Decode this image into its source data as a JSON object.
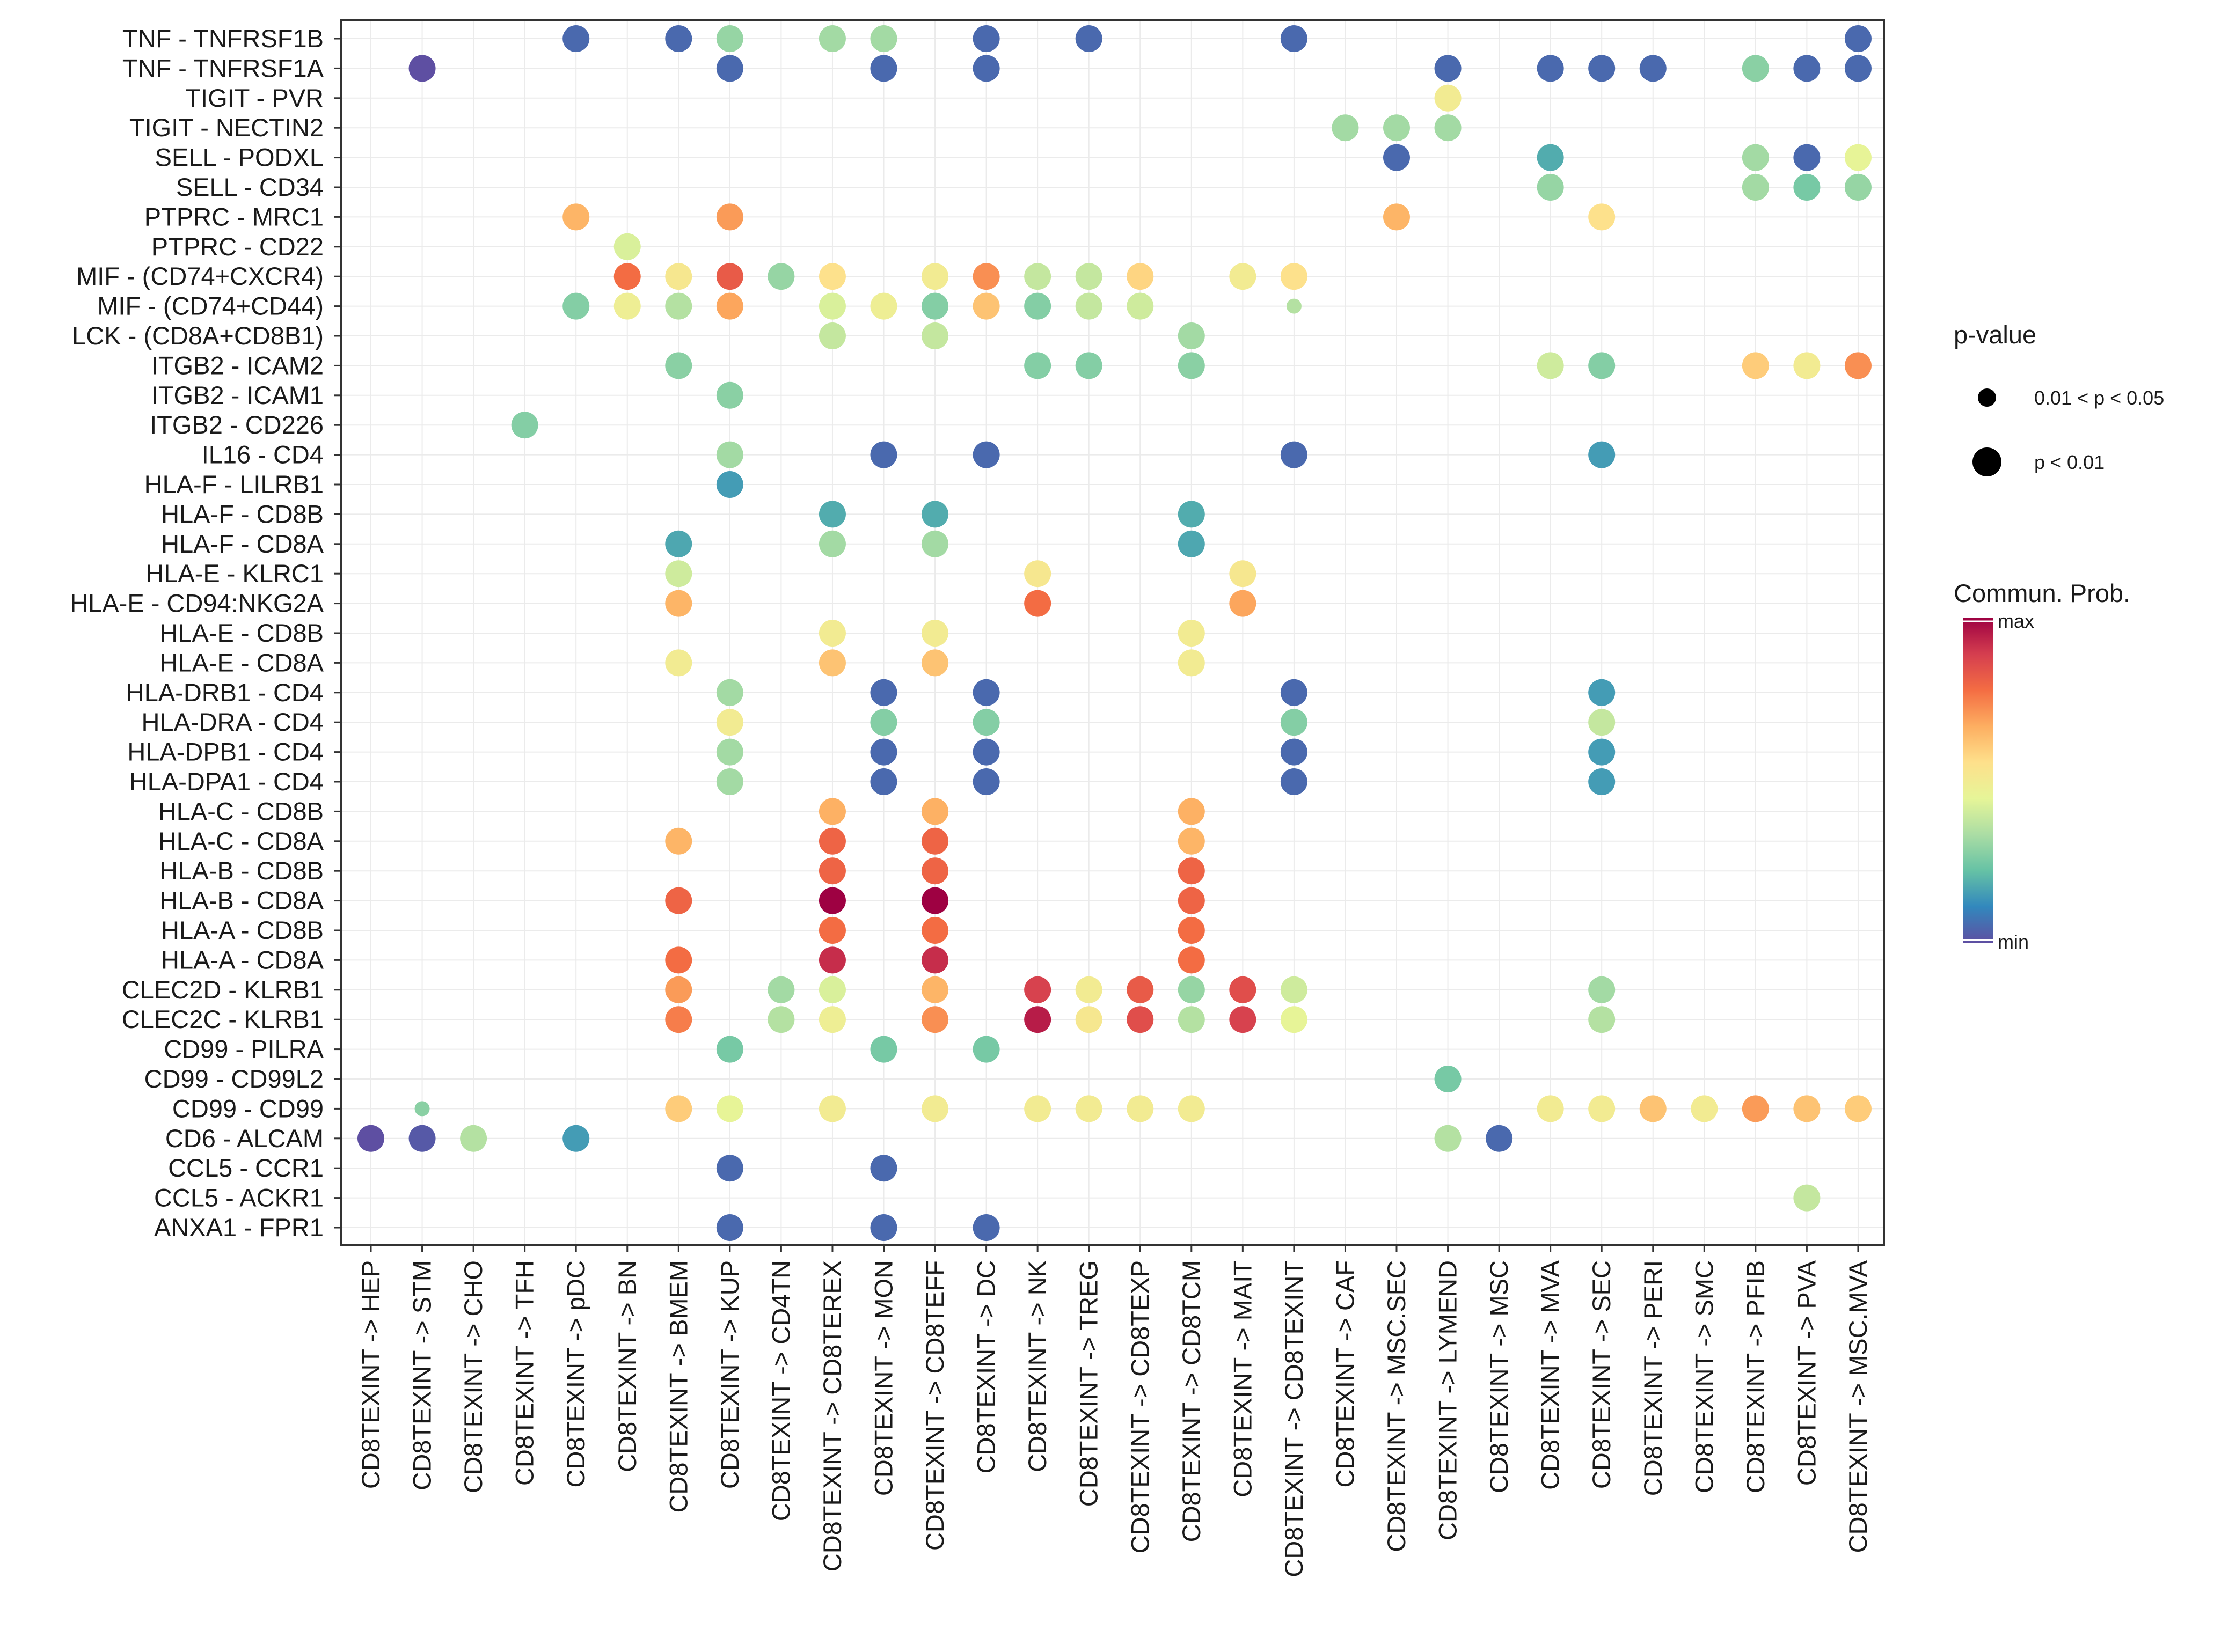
{
  "chart_data": {
    "type": "dotplot",
    "title": "",
    "xlabel": "",
    "ylabel": "",
    "x_categories": [
      "CD8TEXINT -> HEP",
      "CD8TEXINT -> STM",
      "CD8TEXINT -> CHO",
      "CD8TEXINT -> TFH",
      "CD8TEXINT -> pDC",
      "CD8TEXINT -> BN",
      "CD8TEXINT -> BMEM",
      "CD8TEXINT -> KUP",
      "CD8TEXINT -> CD4TN",
      "CD8TEXINT -> CD8TEREX",
      "CD8TEXINT -> MON",
      "CD8TEXINT -> CD8TEFF",
      "CD8TEXINT -> DC",
      "CD8TEXINT -> NK",
      "CD8TEXINT -> TREG",
      "CD8TEXINT -> CD8TEXP",
      "CD8TEXINT -> CD8TCM",
      "CD8TEXINT -> MAIT",
      "CD8TEXINT -> CD8TEXINT",
      "CD8TEXINT -> CAF",
      "CD8TEXINT -> MSC.SEC",
      "CD8TEXINT -> LYMEND",
      "CD8TEXINT -> MSC",
      "CD8TEXINT -> MVA",
      "CD8TEXINT -> SEC",
      "CD8TEXINT -> PERI",
      "CD8TEXINT -> SMC",
      "CD8TEXINT -> PFIB",
      "CD8TEXINT -> PVA",
      "CD8TEXINT -> MSC.MVA"
    ],
    "y_categories": [
      "TNF - TNFRSF1B",
      "TNF - TNFRSF1A",
      "TIGIT - PVR",
      "TIGIT - NECTIN2",
      "SELL - PODXL",
      "SELL - CD34",
      "PTPRC - MRC1",
      "PTPRC - CD22",
      "MIF - (CD74+CXCR4)",
      "MIF - (CD74+CD44)",
      "LCK - (CD8A+CD8B1)",
      "ITGB2 - ICAM2",
      "ITGB2 - ICAM1",
      "ITGB2 - CD226",
      "IL16 - CD4",
      "HLA-F - LILRB1",
      "HLA-F - CD8B",
      "HLA-F - CD8A",
      "HLA-E - KLRC1",
      "HLA-E - CD94:NKG2A",
      "HLA-E - CD8B",
      "HLA-E - CD8A",
      "HLA-DRB1 - CD4",
      "HLA-DRA - CD4",
      "HLA-DPB1 - CD4",
      "HLA-DPA1 - CD4",
      "HLA-C - CD8B",
      "HLA-C - CD8A",
      "HLA-B - CD8B",
      "HLA-B - CD8A",
      "HLA-A - CD8B",
      "HLA-A - CD8A",
      "CLEC2D - KLRB1",
      "CLEC2C - KLRB1",
      "CD99 - PILRA",
      "CD99 - CD99L2",
      "CD99 - CD99",
      "CD6 - ALCAM",
      "CCL5 - CCR1",
      "CCL5 - ACKR1",
      "ANXA1 - FPR1"
    ],
    "points_note": "Each point: [x category index, y category index, communication probability scaled 0 (min) to 1 (max), p-value class (0 = 0.01 < p < 0.05, 1 = p < 0.01)]",
    "points": [
      [
        4,
        0,
        0.05,
        1
      ],
      [
        6,
        0,
        0.05,
        1
      ],
      [
        7,
        0,
        0.3,
        1
      ],
      [
        9,
        0,
        0.32,
        1
      ],
      [
        10,
        0,
        0.32,
        1
      ],
      [
        12,
        0,
        0.05,
        1
      ],
      [
        14,
        0,
        0.05,
        1
      ],
      [
        18,
        0,
        0.05,
        1
      ],
      [
        29,
        0,
        0.05,
        1
      ],
      [
        1,
        1,
        0.0,
        1
      ],
      [
        7,
        1,
        0.05,
        1
      ],
      [
        10,
        1,
        0.05,
        1
      ],
      [
        12,
        1,
        0.05,
        1
      ],
      [
        21,
        1,
        0.05,
        1
      ],
      [
        23,
        1,
        0.05,
        1
      ],
      [
        24,
        1,
        0.05,
        1
      ],
      [
        25,
        1,
        0.05,
        1
      ],
      [
        27,
        1,
        0.28,
        1
      ],
      [
        28,
        1,
        0.05,
        1
      ],
      [
        29,
        1,
        0.05,
        1
      ],
      [
        21,
        2,
        0.5,
        1
      ],
      [
        19,
        3,
        0.32,
        1
      ],
      [
        20,
        3,
        0.32,
        1
      ],
      [
        21,
        3,
        0.32,
        1
      ],
      [
        20,
        4,
        0.05,
        1
      ],
      [
        23,
        4,
        0.18,
        1
      ],
      [
        27,
        4,
        0.32,
        1
      ],
      [
        28,
        4,
        0.05,
        1
      ],
      [
        29,
        4,
        0.45,
        1
      ],
      [
        23,
        5,
        0.3,
        1
      ],
      [
        27,
        5,
        0.32,
        1
      ],
      [
        28,
        5,
        0.25,
        1
      ],
      [
        29,
        5,
        0.3,
        1
      ],
      [
        4,
        6,
        0.65,
        1
      ],
      [
        7,
        6,
        0.7,
        1
      ],
      [
        20,
        6,
        0.65,
        1
      ],
      [
        24,
        6,
        0.55,
        1
      ],
      [
        5,
        7,
        0.42,
        1
      ],
      [
        5,
        8,
        0.78,
        1
      ],
      [
        6,
        8,
        0.52,
        1
      ],
      [
        7,
        8,
        0.82,
        1
      ],
      [
        8,
        8,
        0.3,
        1
      ],
      [
        9,
        8,
        0.55,
        1
      ],
      [
        11,
        8,
        0.5,
        1
      ],
      [
        12,
        8,
        0.72,
        1
      ],
      [
        13,
        8,
        0.38,
        1
      ],
      [
        14,
        8,
        0.38,
        1
      ],
      [
        15,
        8,
        0.58,
        1
      ],
      [
        17,
        8,
        0.5,
        1
      ],
      [
        18,
        8,
        0.55,
        1
      ],
      [
        4,
        9,
        0.27,
        1
      ],
      [
        5,
        9,
        0.48,
        1
      ],
      [
        6,
        9,
        0.35,
        1
      ],
      [
        7,
        9,
        0.68,
        1
      ],
      [
        9,
        9,
        0.42,
        1
      ],
      [
        10,
        9,
        0.48,
        1
      ],
      [
        11,
        9,
        0.27,
        1
      ],
      [
        12,
        9,
        0.62,
        1
      ],
      [
        13,
        9,
        0.27,
        1
      ],
      [
        14,
        9,
        0.38,
        1
      ],
      [
        15,
        9,
        0.4,
        1
      ],
      [
        18,
        9,
        0.35,
        0
      ],
      [
        9,
        10,
        0.38,
        1
      ],
      [
        11,
        10,
        0.38,
        1
      ],
      [
        16,
        10,
        0.32,
        1
      ],
      [
        6,
        11,
        0.28,
        1
      ],
      [
        13,
        11,
        0.27,
        1
      ],
      [
        14,
        11,
        0.27,
        1
      ],
      [
        16,
        11,
        0.28,
        1
      ],
      [
        23,
        11,
        0.4,
        1
      ],
      [
        24,
        11,
        0.27,
        1
      ],
      [
        27,
        11,
        0.6,
        1
      ],
      [
        28,
        11,
        0.5,
        1
      ],
      [
        29,
        11,
        0.72,
        1
      ],
      [
        7,
        12,
        0.28,
        1
      ],
      [
        3,
        13,
        0.27,
        1
      ],
      [
        7,
        14,
        0.32,
        1
      ],
      [
        10,
        14,
        0.05,
        1
      ],
      [
        12,
        14,
        0.05,
        1
      ],
      [
        18,
        14,
        0.05,
        1
      ],
      [
        24,
        14,
        0.15,
        1
      ],
      [
        7,
        15,
        0.15,
        1
      ],
      [
        9,
        16,
        0.18,
        1
      ],
      [
        11,
        16,
        0.18,
        1
      ],
      [
        16,
        16,
        0.18,
        1
      ],
      [
        6,
        17,
        0.17,
        1
      ],
      [
        9,
        17,
        0.32,
        1
      ],
      [
        11,
        17,
        0.32,
        1
      ],
      [
        16,
        17,
        0.17,
        1
      ],
      [
        6,
        18,
        0.4,
        1
      ],
      [
        13,
        18,
        0.52,
        1
      ],
      [
        17,
        18,
        0.52,
        1
      ],
      [
        6,
        19,
        0.65,
        1
      ],
      [
        13,
        19,
        0.78,
        1
      ],
      [
        17,
        19,
        0.68,
        1
      ],
      [
        9,
        20,
        0.5,
        1
      ],
      [
        11,
        20,
        0.5,
        1
      ],
      [
        16,
        20,
        0.5,
        1
      ],
      [
        6,
        21,
        0.5,
        1
      ],
      [
        9,
        21,
        0.62,
        1
      ],
      [
        11,
        21,
        0.62,
        1
      ],
      [
        16,
        21,
        0.5,
        1
      ],
      [
        7,
        22,
        0.32,
        1
      ],
      [
        10,
        22,
        0.05,
        1
      ],
      [
        12,
        22,
        0.05,
        1
      ],
      [
        18,
        22,
        0.05,
        1
      ],
      [
        24,
        22,
        0.15,
        1
      ],
      [
        7,
        23,
        0.5,
        1
      ],
      [
        10,
        23,
        0.27,
        1
      ],
      [
        12,
        23,
        0.27,
        1
      ],
      [
        18,
        23,
        0.27,
        1
      ],
      [
        24,
        23,
        0.38,
        1
      ],
      [
        7,
        24,
        0.32,
        1
      ],
      [
        10,
        24,
        0.05,
        1
      ],
      [
        12,
        24,
        0.05,
        1
      ],
      [
        18,
        24,
        0.05,
        1
      ],
      [
        24,
        24,
        0.15,
        1
      ],
      [
        7,
        25,
        0.32,
        1
      ],
      [
        10,
        25,
        0.05,
        1
      ],
      [
        12,
        25,
        0.05,
        1
      ],
      [
        18,
        25,
        0.05,
        1
      ],
      [
        24,
        25,
        0.15,
        1
      ],
      [
        9,
        26,
        0.66,
        1
      ],
      [
        11,
        26,
        0.66,
        1
      ],
      [
        16,
        26,
        0.66,
        1
      ],
      [
        6,
        27,
        0.65,
        1
      ],
      [
        9,
        27,
        0.8,
        1
      ],
      [
        11,
        27,
        0.8,
        1
      ],
      [
        16,
        27,
        0.65,
        1
      ],
      [
        9,
        28,
        0.8,
        1
      ],
      [
        11,
        28,
        0.8,
        1
      ],
      [
        16,
        28,
        0.8,
        1
      ],
      [
        6,
        29,
        0.8,
        1
      ],
      [
        9,
        29,
        1.0,
        1
      ],
      [
        11,
        29,
        1.0,
        1
      ],
      [
        16,
        29,
        0.8,
        1
      ],
      [
        9,
        30,
        0.78,
        1
      ],
      [
        11,
        30,
        0.78,
        1
      ],
      [
        16,
        30,
        0.78,
        1
      ],
      [
        6,
        31,
        0.78,
        1
      ],
      [
        9,
        31,
        0.92,
        1
      ],
      [
        11,
        31,
        0.92,
        1
      ],
      [
        16,
        31,
        0.78,
        1
      ],
      [
        6,
        32,
        0.7,
        1
      ],
      [
        8,
        32,
        0.32,
        1
      ],
      [
        9,
        32,
        0.42,
        1
      ],
      [
        11,
        32,
        0.65,
        1
      ],
      [
        13,
        32,
        0.88,
        1
      ],
      [
        14,
        32,
        0.5,
        1
      ],
      [
        15,
        32,
        0.82,
        1
      ],
      [
        16,
        32,
        0.3,
        1
      ],
      [
        17,
        32,
        0.85,
        1
      ],
      [
        18,
        32,
        0.4,
        1
      ],
      [
        24,
        32,
        0.32,
        1
      ],
      [
        6,
        33,
        0.75,
        1
      ],
      [
        8,
        33,
        0.35,
        1
      ],
      [
        9,
        33,
        0.48,
        1
      ],
      [
        11,
        33,
        0.72,
        1
      ],
      [
        13,
        33,
        0.95,
        1
      ],
      [
        14,
        33,
        0.52,
        1
      ],
      [
        15,
        33,
        0.85,
        1
      ],
      [
        16,
        33,
        0.35,
        1
      ],
      [
        17,
        33,
        0.88,
        1
      ],
      [
        18,
        33,
        0.45,
        1
      ],
      [
        24,
        33,
        0.35,
        1
      ],
      [
        7,
        34,
        0.25,
        1
      ],
      [
        10,
        34,
        0.25,
        1
      ],
      [
        12,
        34,
        0.25,
        1
      ],
      [
        21,
        35,
        0.25,
        1
      ],
      [
        1,
        36,
        0.28,
        0
      ],
      [
        6,
        36,
        0.6,
        1
      ],
      [
        7,
        36,
        0.45,
        1
      ],
      [
        9,
        36,
        0.5,
        1
      ],
      [
        11,
        36,
        0.5,
        1
      ],
      [
        13,
        36,
        0.5,
        1
      ],
      [
        14,
        36,
        0.5,
        1
      ],
      [
        15,
        36,
        0.5,
        1
      ],
      [
        16,
        36,
        0.5,
        1
      ],
      [
        23,
        36,
        0.5,
        1
      ],
      [
        24,
        36,
        0.5,
        1
      ],
      [
        25,
        36,
        0.62,
        1
      ],
      [
        26,
        36,
        0.5,
        1
      ],
      [
        27,
        36,
        0.7,
        1
      ],
      [
        28,
        36,
        0.62,
        1
      ],
      [
        29,
        36,
        0.6,
        1
      ],
      [
        0,
        37,
        0.0,
        1
      ],
      [
        1,
        37,
        0.02,
        1
      ],
      [
        2,
        37,
        0.35,
        1
      ],
      [
        4,
        37,
        0.15,
        1
      ],
      [
        21,
        37,
        0.35,
        1
      ],
      [
        22,
        37,
        0.05,
        1
      ],
      [
        7,
        38,
        0.05,
        1
      ],
      [
        10,
        38,
        0.05,
        1
      ],
      [
        28,
        39,
        0.38,
        1
      ],
      [
        7,
        40,
        0.05,
        1
      ],
      [
        10,
        40,
        0.05,
        1
      ],
      [
        12,
        40,
        0.05,
        1
      ]
    ],
    "legend_size": {
      "title": "p-value",
      "entries": [
        "0.01 < p < 0.05",
        "p < 0.01"
      ]
    },
    "legend_color": {
      "title": "Commun. Prob.",
      "max_label": "max",
      "min_label": "min",
      "palette": [
        "#5E4FA2",
        "#3288BD",
        "#66C2A5",
        "#ABDDA4",
        "#E6F598",
        "#FEE08B",
        "#FDAE61",
        "#F46D43",
        "#D53E4F",
        "#9E0142"
      ]
    },
    "grid": true,
    "legend_position": "right"
  }
}
